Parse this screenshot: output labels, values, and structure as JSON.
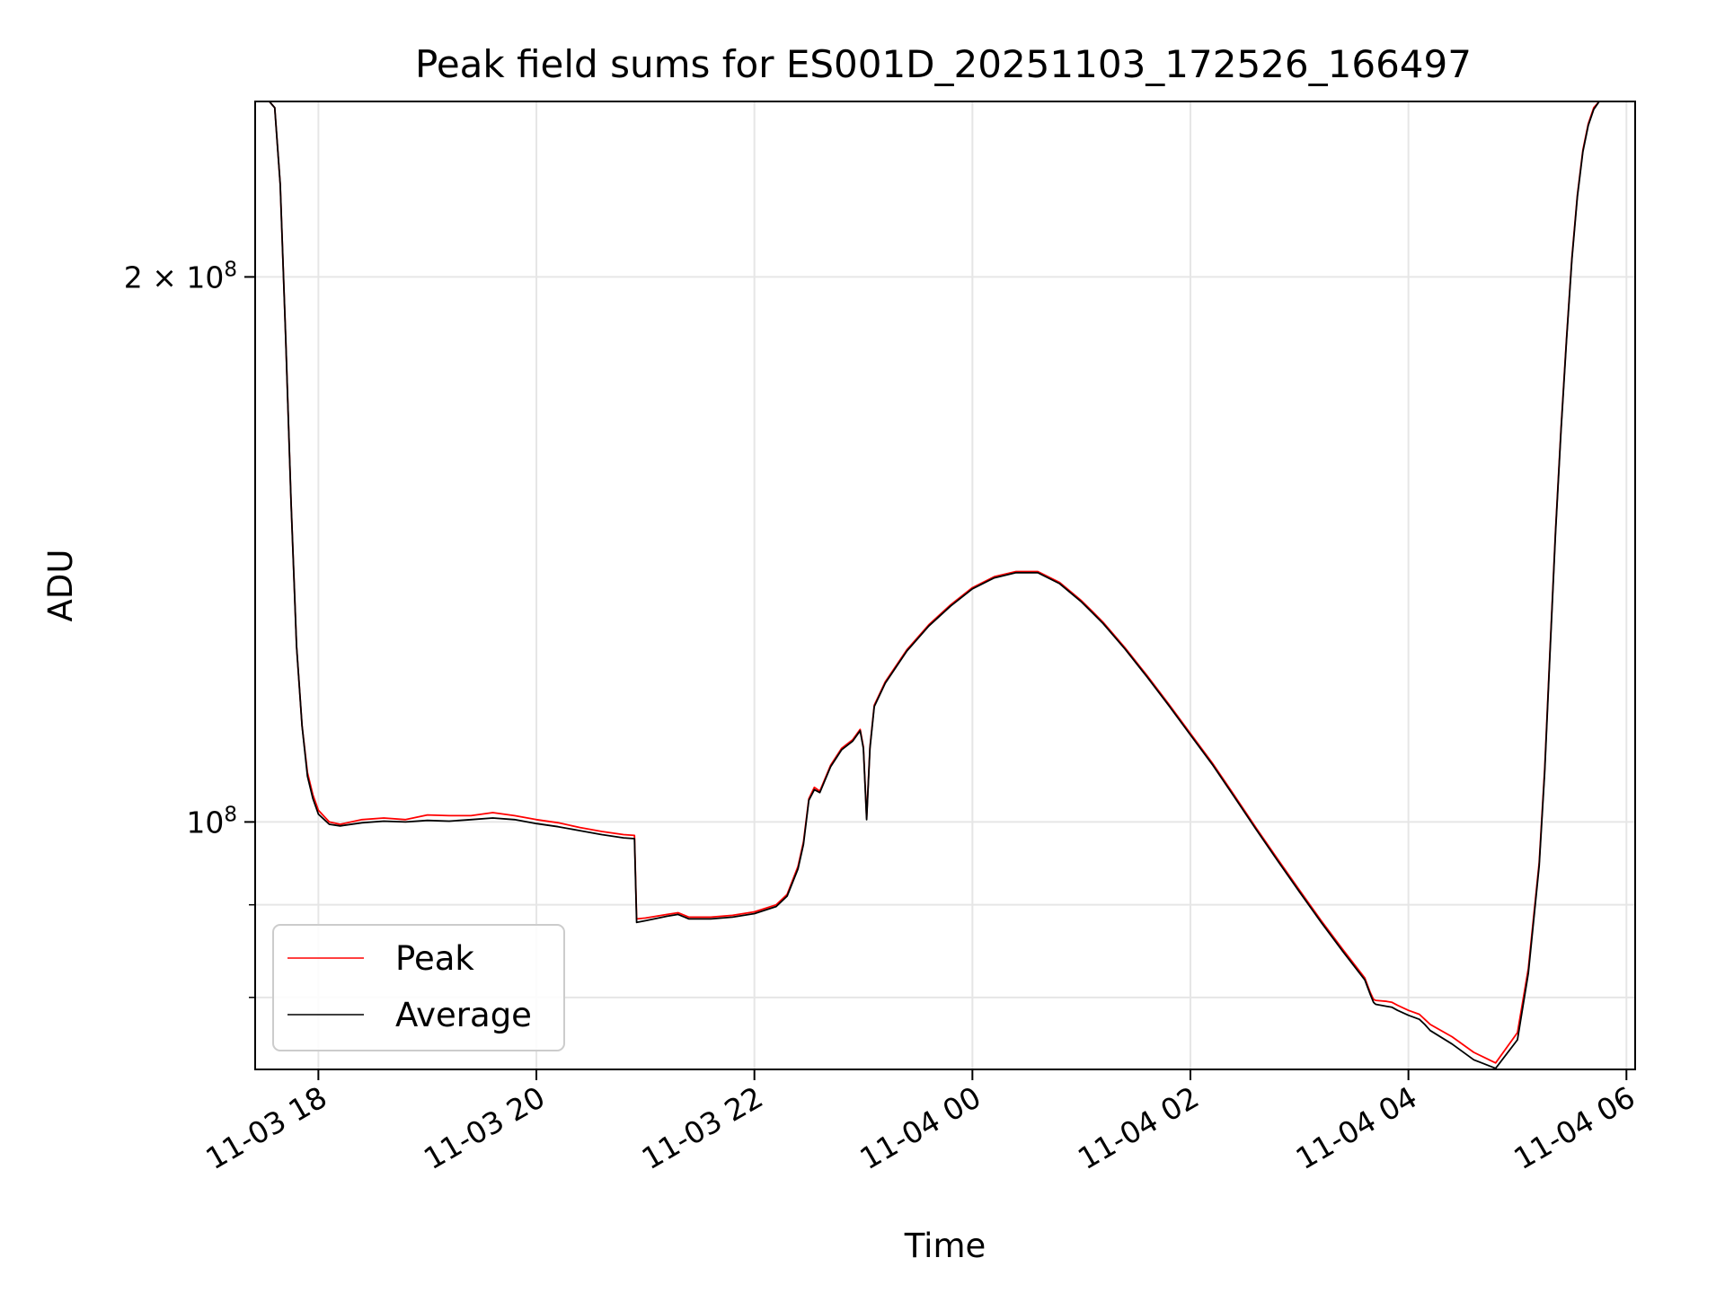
{
  "chart_data": {
    "type": "line",
    "title": "Peak field sums for ES001D_20251103_172526_166497",
    "xlabel": "Time",
    "ylabel": "ADU",
    "yscale": "log",
    "ylim": [
      73000000,
      250000000
    ],
    "xlim": [
      17.42,
      30.08
    ],
    "grid": true,
    "legend_position": "lower-left",
    "x_unit": "hours since 11-03 00:00",
    "x_ticks": [
      {
        "value": 18,
        "label": "11-03 18"
      },
      {
        "value": 20,
        "label": "11-03 20"
      },
      {
        "value": 22,
        "label": "11-03 22"
      },
      {
        "value": 24,
        "label": "11-04 00"
      },
      {
        "value": 26,
        "label": "11-04 02"
      },
      {
        "value": 28,
        "label": "11-04 04"
      },
      {
        "value": 30,
        "label": "11-04 06"
      }
    ],
    "y_ticks": [
      {
        "value": 200000000,
        "base": "2 × 10",
        "exp": "8"
      },
      {
        "value": 100000000,
        "base": "10",
        "exp": "8"
      }
    ],
    "y_minor_ticks": [
      80000000,
      90000000
    ],
    "series": [
      {
        "name": "Peak",
        "color": "#ff0000",
        "x": [
          17.42,
          17.55,
          17.6,
          17.65,
          17.7,
          17.75,
          17.8,
          17.85,
          17.9,
          17.95,
          18.0,
          18.1,
          18.2,
          18.4,
          18.6,
          18.8,
          19.0,
          19.2,
          19.4,
          19.6,
          19.8,
          20.0,
          20.2,
          20.4,
          20.6,
          20.8,
          20.9,
          20.92,
          21.0,
          21.2,
          21.3,
          21.4,
          21.5,
          21.6,
          21.8,
          22.0,
          22.2,
          22.3,
          22.4,
          22.45,
          22.5,
          22.55,
          22.6,
          22.7,
          22.8,
          22.9,
          22.97,
          23.0,
          23.03,
          23.06,
          23.1,
          23.2,
          23.4,
          23.6,
          23.8,
          24.0,
          24.2,
          24.4,
          24.6,
          24.8,
          25.0,
          25.1,
          25.2,
          25.4,
          25.6,
          25.8,
          26.0,
          26.2,
          26.4,
          26.6,
          26.8,
          27.0,
          27.2,
          27.4,
          27.6,
          27.65,
          27.68,
          27.7,
          27.8,
          27.85,
          27.9,
          28.0,
          28.1,
          28.15,
          28.2,
          28.4,
          28.6,
          28.8,
          29.0,
          29.1,
          29.2,
          29.25,
          29.3,
          29.35,
          29.4,
          29.45,
          29.5,
          29.55,
          29.6,
          29.65,
          29.7,
          29.75,
          29.8,
          29.85,
          29.9,
          29.95,
          30.08
        ],
        "y": [
          250000000,
          250000000,
          248000000,
          225000000,
          185000000,
          150000000,
          125000000,
          113000000,
          106500000,
          103500000,
          101500000,
          100000000,
          99700000,
          100300000,
          100500000,
          100300000,
          100900000,
          100800000,
          100800000,
          101200000,
          100800000,
          100300000,
          99900000,
          99300000,
          98800000,
          98400000,
          98300000,
          88400000,
          88500000,
          88900000,
          89100000,
          88600000,
          88600000,
          88600000,
          88800000,
          89200000,
          90000000,
          91200000,
          94500000,
          97500000,
          103000000,
          104500000,
          104000000,
          107500000,
          109800000,
          111000000,
          112500000,
          110000000,
          100500000,
          110000000,
          116000000,
          119500000,
          124500000,
          128500000,
          131800000,
          134700000,
          136600000,
          137500000,
          137500000,
          135600000,
          132500000,
          130700000,
          128900000,
          124800000,
          120500000,
          116200000,
          111900000,
          107800000,
          103500000,
          99300000,
          95400000,
          91700000,
          88200000,
          85000000,
          82000000,
          80500000,
          79800000,
          79700000,
          79600000,
          79500000,
          79200000,
          78700000,
          78300000,
          77800000,
          77300000,
          76100000,
          74600000,
          73600000,
          76500000,
          83000000,
          95000000,
          107000000,
          125000000,
          145000000,
          165000000,
          185000000,
          205000000,
          222000000,
          235000000,
          243000000,
          248000000,
          250000000,
          250000000,
          250000000,
          250000000,
          250000000,
          250000000
        ]
      },
      {
        "name": "Average",
        "color": "#000000",
        "x": [
          17.42,
          17.55,
          17.6,
          17.65,
          17.7,
          17.75,
          17.8,
          17.85,
          17.9,
          17.95,
          18.0,
          18.1,
          18.2,
          18.4,
          18.6,
          18.8,
          19.0,
          19.2,
          19.4,
          19.6,
          19.8,
          20.0,
          20.2,
          20.4,
          20.6,
          20.8,
          20.9,
          20.92,
          21.0,
          21.2,
          21.3,
          21.4,
          21.5,
          21.6,
          21.8,
          22.0,
          22.2,
          22.3,
          22.4,
          22.45,
          22.5,
          22.55,
          22.6,
          22.7,
          22.8,
          22.9,
          22.97,
          23.0,
          23.03,
          23.06,
          23.1,
          23.2,
          23.4,
          23.6,
          23.8,
          24.0,
          24.2,
          24.4,
          24.6,
          24.8,
          25.0,
          25.1,
          25.2,
          25.4,
          25.6,
          25.8,
          26.0,
          26.2,
          26.4,
          26.6,
          26.8,
          27.0,
          27.2,
          27.4,
          27.6,
          27.65,
          27.68,
          27.7,
          27.8,
          27.85,
          27.9,
          28.0,
          28.1,
          28.15,
          28.2,
          28.4,
          28.6,
          28.8,
          29.0,
          29.1,
          29.2,
          29.25,
          29.3,
          29.35,
          29.4,
          29.45,
          29.5,
          29.55,
          29.6,
          29.65,
          29.7,
          29.75,
          29.8,
          29.85,
          29.9,
          29.95,
          30.08
        ],
        "y": [
          250000000,
          250000000,
          248000000,
          225000000,
          185000000,
          150000000,
          125000000,
          113000000,
          106000000,
          103000000,
          101000000,
          99700000,
          99500000,
          99900000,
          100100000,
          100000000,
          100200000,
          100100000,
          100300000,
          100500000,
          100300000,
          99800000,
          99400000,
          98900000,
          98400000,
          98000000,
          97900000,
          88000000,
          88200000,
          88700000,
          88900000,
          88400000,
          88400000,
          88400000,
          88600000,
          89000000,
          89800000,
          91000000,
          94200000,
          97200000,
          102800000,
          104200000,
          103800000,
          107300000,
          109600000,
          110800000,
          112300000,
          109800000,
          100300000,
          109800000,
          115800000,
          119300000,
          124300000,
          128300000,
          131600000,
          134500000,
          136400000,
          137300000,
          137300000,
          135400000,
          132300000,
          130500000,
          128700000,
          124600000,
          120300000,
          116000000,
          111700000,
          107600000,
          103300000,
          99100000,
          95200000,
          91500000,
          88000000,
          84800000,
          81800000,
          80300000,
          79500000,
          79300000,
          79100000,
          79000000,
          78700000,
          78200000,
          77800000,
          77300000,
          76700000,
          75400000,
          73900000,
          73100000,
          75800000,
          82500000,
          94600000,
          106500000,
          124500000,
          144500000,
          164500000,
          184500000,
          204500000,
          221500000,
          234500000,
          242500000,
          247500000,
          250000000,
          250000000,
          250000000,
          250000000,
          250000000,
          250000000
        ]
      }
    ]
  }
}
